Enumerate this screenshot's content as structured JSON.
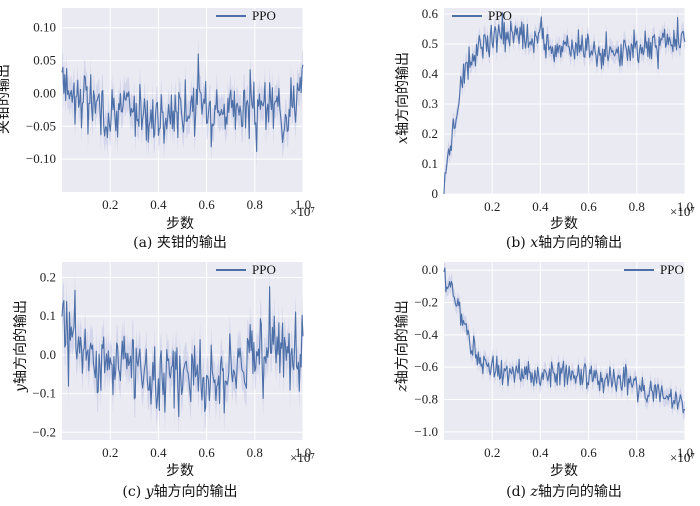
{
  "chart_data": [
    {
      "type": "line",
      "id": "a",
      "caption": "(a) 夹钳的输出",
      "xlabel": "步数",
      "ylabel": "夹钳的输出",
      "x_multiplier": "×10⁷",
      "xlim": [
        0.0,
        1.0
      ],
      "ylim": [
        -0.15,
        0.13
      ],
      "xticks": [
        "0.2",
        "0.4",
        "0.6",
        "0.8",
        "1.0"
      ],
      "yticks": [
        "0.10",
        "0.05",
        "0.00",
        "−0.05",
        "−0.10"
      ],
      "ytick_values": [
        0.1,
        0.05,
        0.0,
        -0.05,
        -0.1
      ],
      "legend": "PPO",
      "color": "#4c6fa8",
      "shade": 0.025,
      "series": [
        {
          "name": "PPO",
          "x": [
            0.0,
            0.05,
            0.1,
            0.15,
            0.2,
            0.25,
            0.3,
            0.35,
            0.4,
            0.45,
            0.5,
            0.55,
            0.6,
            0.65,
            0.7,
            0.75,
            0.8,
            0.85,
            0.9,
            0.95,
            1.0
          ],
          "values": [
            0.03,
            0.0,
            -0.01,
            -0.02,
            -0.03,
            -0.02,
            -0.03,
            -0.03,
            -0.04,
            -0.03,
            -0.02,
            -0.02,
            -0.01,
            -0.02,
            -0.03,
            -0.02,
            -0.03,
            -0.02,
            -0.03,
            -0.01,
            0.0
          ]
        }
      ]
    },
    {
      "type": "line",
      "id": "b",
      "caption_var": "x",
      "caption": "(b) x轴方向的输出",
      "caption_pre": "(b) ",
      "caption_post": "轴方向的输出",
      "xlabel": "步数",
      "ylabel_var": "x",
      "ylabel": "轴方向的输出",
      "x_multiplier": "×10⁷",
      "xlim": [
        0.0,
        1.0
      ],
      "ylim": [
        0.0,
        0.62
      ],
      "xticks": [
        "0.2",
        "0.4",
        "0.6",
        "0.8",
        "1.0"
      ],
      "yticks": [
        "0.6",
        "0.5",
        "0.4",
        "0.3",
        "0.2",
        "0.1",
        "0"
      ],
      "ytick_values": [
        0.6,
        0.5,
        0.4,
        0.3,
        0.2,
        0.1,
        0.0
      ],
      "legend": "PPO",
      "color": "#4c6fa8",
      "shade": 0.03,
      "series": [
        {
          "name": "PPO",
          "x": [
            0.0,
            0.02,
            0.04,
            0.06,
            0.08,
            0.1,
            0.13,
            0.16,
            0.2,
            0.25,
            0.3,
            0.35,
            0.4,
            0.45,
            0.5,
            0.55,
            0.6,
            0.65,
            0.7,
            0.75,
            0.8,
            0.85,
            0.9,
            0.95,
            1.0
          ],
          "values": [
            0.03,
            0.12,
            0.22,
            0.3,
            0.38,
            0.44,
            0.48,
            0.5,
            0.52,
            0.53,
            0.54,
            0.52,
            0.51,
            0.5,
            0.5,
            0.5,
            0.48,
            0.45,
            0.47,
            0.48,
            0.5,
            0.49,
            0.5,
            0.51,
            0.52
          ]
        }
      ]
    },
    {
      "type": "line",
      "id": "c",
      "caption": "(c) y轴方向的输出",
      "caption_pre": "(c) ",
      "caption_post": "轴方向的输出",
      "caption_var": "y",
      "xlabel": "步数",
      "ylabel_var": "y",
      "ylabel": "轴方向的输出",
      "x_multiplier": "×10⁷",
      "xlim": [
        0.0,
        1.0
      ],
      "ylim": [
        -0.22,
        0.24
      ],
      "xticks": [
        "0.2",
        "0.4",
        "0.6",
        "0.8",
        "1.0"
      ],
      "yticks": [
        "0.2",
        "0.1",
        "0.0",
        "−0.1",
        "−0.2"
      ],
      "ytick_values": [
        0.2,
        0.1,
        0.0,
        -0.1,
        -0.2
      ],
      "legend": "PPO",
      "color": "#4c6fa8",
      "shade": 0.05,
      "series": [
        {
          "name": "PPO",
          "x": [
            0.0,
            0.05,
            0.1,
            0.15,
            0.2,
            0.25,
            0.3,
            0.35,
            0.4,
            0.45,
            0.5,
            0.55,
            0.6,
            0.65,
            0.7,
            0.75,
            0.8,
            0.85,
            0.9,
            0.95,
            1.0
          ],
          "values": [
            0.08,
            0.04,
            0.01,
            -0.01,
            -0.02,
            -0.01,
            -0.03,
            -0.05,
            -0.07,
            -0.06,
            -0.05,
            -0.06,
            -0.05,
            -0.04,
            -0.02,
            -0.01,
            0.0,
            0.02,
            0.01,
            -0.01,
            -0.02
          ]
        }
      ]
    },
    {
      "type": "line",
      "id": "d",
      "caption": "(d) z轴方向的输出",
      "caption_pre": "(d) ",
      "caption_post": "轴方向的输出",
      "caption_var": "z",
      "xlabel": "步数",
      "ylabel_var": "z",
      "ylabel": "轴方向的输出",
      "x_multiplier": "×10⁷",
      "xlim": [
        0.0,
        1.0
      ],
      "ylim": [
        -1.05,
        0.05
      ],
      "xticks": [
        "0.2",
        "0.4",
        "0.6",
        "0.8",
        "1.0"
      ],
      "yticks": [
        "0.0",
        "−0.2",
        "−0.4",
        "−0.6",
        "−0.8",
        "−1.0"
      ],
      "ytick_values": [
        0.0,
        -0.2,
        -0.4,
        -0.6,
        -0.8,
        -1.0
      ],
      "legend": "PPO",
      "color": "#4c6fa8",
      "shade": 0.05,
      "series": [
        {
          "name": "PPO",
          "x": [
            0.0,
            0.02,
            0.04,
            0.06,
            0.08,
            0.1,
            0.13,
            0.16,
            0.2,
            0.25,
            0.3,
            0.35,
            0.4,
            0.45,
            0.5,
            0.55,
            0.6,
            0.65,
            0.7,
            0.75,
            0.8,
            0.85,
            0.9,
            0.95,
            1.0
          ],
          "values": [
            -0.05,
            -0.08,
            -0.15,
            -0.25,
            -0.33,
            -0.42,
            -0.5,
            -0.56,
            -0.6,
            -0.63,
            -0.64,
            -0.66,
            -0.65,
            -0.64,
            -0.64,
            -0.63,
            -0.64,
            -0.66,
            -0.67,
            -0.69,
            -0.72,
            -0.75,
            -0.78,
            -0.8,
            -0.82
          ]
        }
      ]
    }
  ]
}
